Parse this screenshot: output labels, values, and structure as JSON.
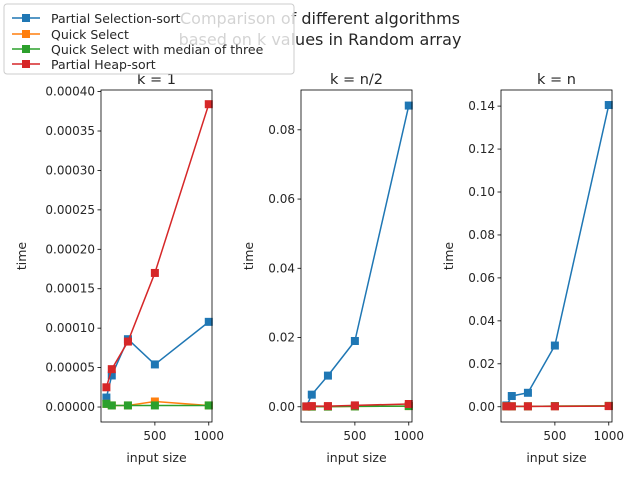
{
  "figure": {
    "suptitle_lines": [
      "Comparison of different algorithms",
      "based on k values in Random array"
    ]
  },
  "colors": {
    "partial_selection_sort": "#1f77b4",
    "quick_select": "#ff7f0e",
    "quick_select_median3": "#2ca02c",
    "partial_heap_sort": "#d62728"
  },
  "chart_data": [
    {
      "type": "line",
      "title": "k = 1",
      "xlabel": "input size",
      "ylabel": "time",
      "x": [
        50,
        100,
        250,
        500,
        1000
      ],
      "xlim": [
        0,
        1030
      ],
      "ylim": [
        -1.9e-05,
        0.000402
      ],
      "xticks": [
        500,
        1000
      ],
      "yticks": [
        0,
        5e-05,
        0.0001,
        0.00015,
        0.0002,
        0.00025,
        0.0003,
        0.00035,
        0.0004
      ],
      "ytick_labels": [
        "0.00000",
        "0.00005",
        "0.00010",
        "0.00015",
        "0.00020",
        "0.00025",
        "0.00030",
        "0.00035",
        "0.00040"
      ],
      "series": [
        {
          "name": "Partial Selection-sort",
          "values": [
            1.2e-05,
            4e-05,
            8.6e-05,
            5.4e-05,
            0.000108
          ]
        },
        {
          "name": "Quick Select",
          "values": [
            4e-06,
            2e-06,
            2e-06,
            7e-06,
            2e-06
          ]
        },
        {
          "name": "Quick Select with median of three",
          "values": [
            4e-06,
            2e-06,
            2e-06,
            2e-06,
            2e-06
          ]
        },
        {
          "name": "Partial Heap-sort",
          "values": [
            2.5e-05,
            4.8e-05,
            8.3e-05,
            0.00017,
            0.000384
          ]
        }
      ]
    },
    {
      "type": "line",
      "title": "k = n/2",
      "xlabel": "input size",
      "ylabel": "time",
      "x": [
        50,
        100,
        250,
        500,
        1000
      ],
      "xlim": [
        0,
        1030
      ],
      "ylim": [
        -0.0044,
        0.0915
      ],
      "xticks": [
        500,
        1000
      ],
      "yticks": [
        0,
        0.02,
        0.04,
        0.06,
        0.08
      ],
      "ytick_labels": [
        "0.00",
        "0.02",
        "0.04",
        "0.06",
        "0.08"
      ],
      "series": [
        {
          "name": "Partial Selection-sort",
          "values": [
            0.0001,
            0.0035,
            0.009,
            0.019,
            0.087
          ]
        },
        {
          "name": "Quick Select",
          "values": [
            5e-05,
            5e-05,
            5e-05,
            0.0001,
            0.0002
          ]
        },
        {
          "name": "Quick Select with median of three",
          "values": [
            5e-05,
            5e-05,
            5e-05,
            0.0001,
            0.0002
          ]
        },
        {
          "name": "Partial Heap-sort",
          "values": [
            0.0001,
            0.0002,
            0.0002,
            0.0004,
            0.0008
          ]
        }
      ]
    },
    {
      "type": "line",
      "title": "k = n",
      "xlabel": "input size",
      "ylabel": "time",
      "x": [
        50,
        100,
        250,
        500,
        1000
      ],
      "xlim": [
        0,
        1030
      ],
      "ylim": [
        -0.0071,
        0.1475
      ],
      "xticks": [
        500,
        1000
      ],
      "yticks": [
        0,
        0.02,
        0.04,
        0.06,
        0.08,
        0.1,
        0.12,
        0.14
      ],
      "ytick_labels": [
        "0.00",
        "0.02",
        "0.04",
        "0.06",
        "0.08",
        "0.10",
        "0.12",
        "0.14"
      ],
      "series": [
        {
          "name": "Partial Selection-sort",
          "values": [
            0.0006,
            0.005,
            0.0065,
            0.0285,
            0.1405
          ]
        },
        {
          "name": "Quick Select",
          "values": [
            0.0002,
            0.0002,
            0.0002,
            0.0003,
            0.0004
          ]
        },
        {
          "name": "Quick Select with median of three",
          "values": [
            0.0002,
            0.0002,
            0.0002,
            0.0003,
            0.0004
          ]
        },
        {
          "name": "Partial Heap-sort",
          "values": [
            0.0002,
            0.0002,
            0.0002,
            0.0002,
            0.0003
          ]
        }
      ]
    }
  ],
  "legend": {
    "location": "top-left",
    "entries": [
      "Partial Selection-sort",
      "Quick Select",
      "Quick Select with median of three",
      "Partial Heap-sort"
    ]
  }
}
